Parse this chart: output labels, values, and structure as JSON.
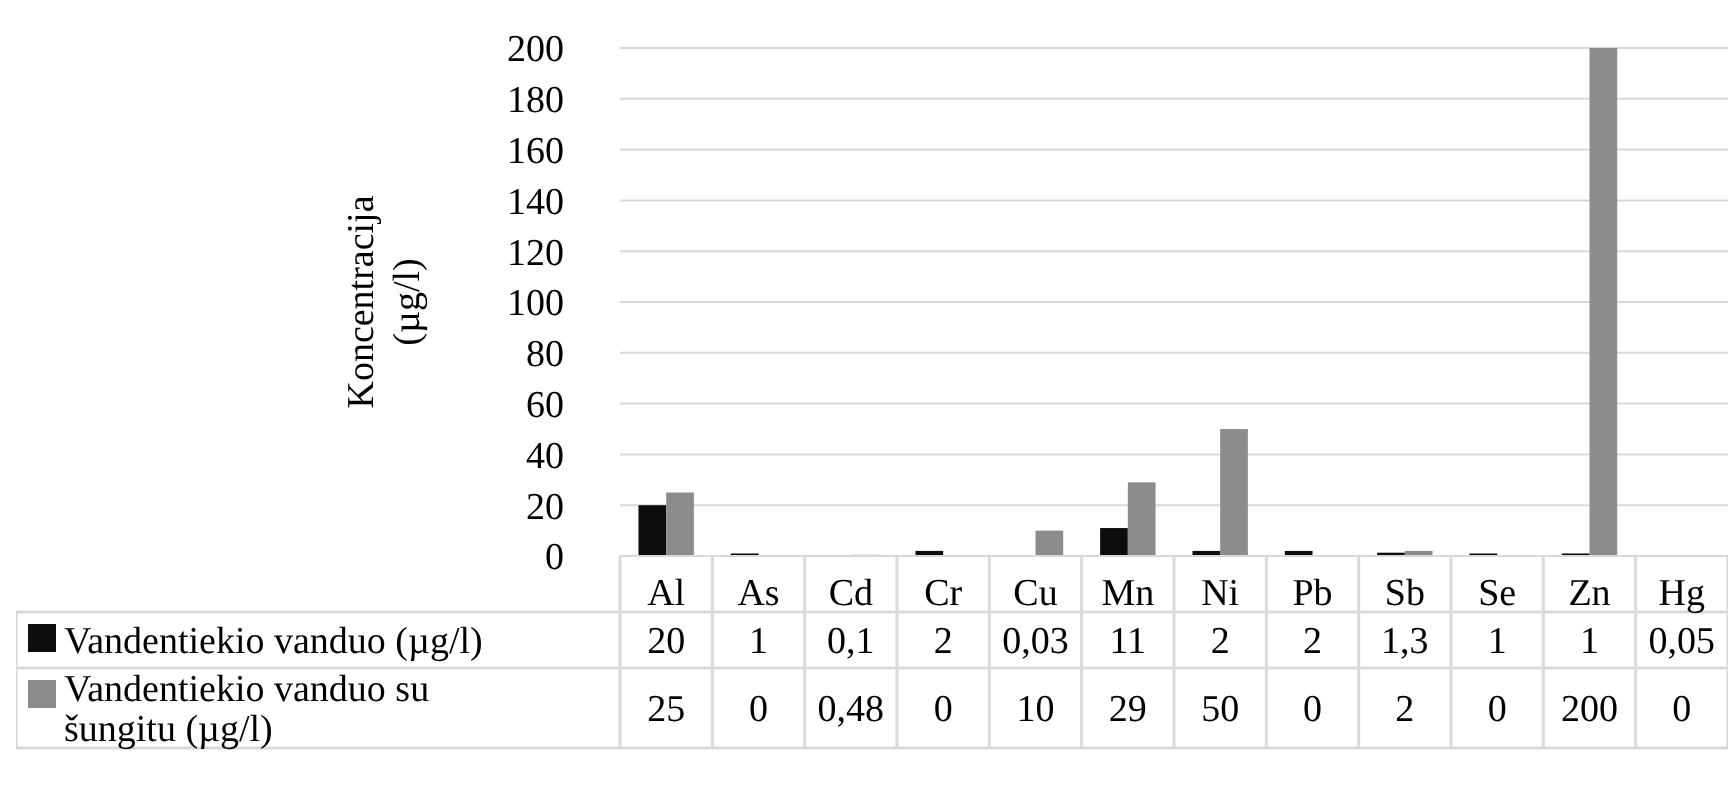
{
  "chart_data": {
    "type": "bar",
    "ylabel": "Koncentracija (µg/l)",
    "categories": [
      "Al",
      "As",
      "Cd",
      "Cr",
      "Cu",
      "Mn",
      "Ni",
      "Pb",
      "Sb",
      "Se",
      "Zn",
      "Hg"
    ],
    "series": [
      {
        "name": "Vandentiekio vanduo (µg/l)",
        "color": "#0d0d0d",
        "values": [
          20,
          1,
          0.1,
          2,
          0.03,
          11,
          2,
          2,
          1.3,
          1,
          1,
          0.05
        ],
        "value_labels": [
          "20",
          "1",
          "0,1",
          "2",
          "0,03",
          "11",
          "2",
          "2",
          "1,3",
          "1",
          "1",
          "0,05"
        ]
      },
      {
        "name": "Vandentiekio vanduo su šungitu (µg/l)",
        "color": "#8c8c8c",
        "values": [
          25,
          0,
          0.48,
          0,
          10,
          29,
          50,
          0,
          2,
          0,
          200,
          0
        ],
        "value_labels": [
          "25",
          "0",
          "0,48",
          "0",
          "10",
          "29",
          "50",
          "0",
          "2",
          "0",
          "200",
          "0"
        ]
      }
    ],
    "ylim": [
      0,
      200
    ],
    "yticks": [
      0,
      20,
      40,
      60,
      80,
      100,
      120,
      140,
      160,
      180,
      200
    ],
    "grid": "y",
    "legend": "bottom"
  }
}
